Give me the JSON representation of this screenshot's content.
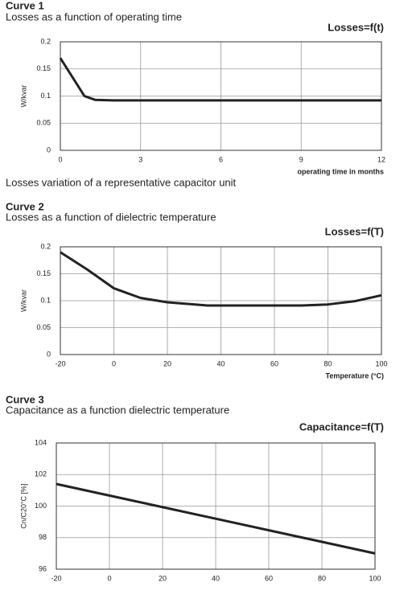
{
  "chart_data": [
    {
      "type": "line",
      "heading": "Curve 1",
      "subtitle": "Losses as a function of operating time",
      "title": "Losses=f(t)",
      "y_label": "W/kvar",
      "x_label": "operating time in months",
      "caption": "Losses variation of a representative capacitor unit",
      "x": [
        0,
        0.9,
        1.3,
        2,
        12
      ],
      "values": [
        0.17,
        0.1,
        0.093,
        0.092,
        0.092
      ],
      "color": "#222222",
      "xlim": [
        0,
        12
      ],
      "xticks": [
        0,
        3,
        6,
        9,
        12
      ],
      "ylim": [
        0,
        0.2
      ],
      "yticks": [
        0,
        0.05,
        0.1,
        0.15,
        0.2
      ],
      "grid": true
    },
    {
      "type": "line",
      "heading": "Curve 2",
      "subtitle": "Losses as a function of dielectric temperature",
      "title": "Losses=f(T)",
      "y_label": "W/kvar",
      "x_label": "Temperature (°C)",
      "x": [
        -20,
        -10,
        0,
        10,
        20,
        35,
        50,
        70,
        80,
        90,
        100
      ],
      "values": [
        0.19,
        0.158,
        0.123,
        0.105,
        0.097,
        0.091,
        0.091,
        0.091,
        0.093,
        0.099,
        0.11
      ],
      "color": "#222222",
      "xlim": [
        -20,
        100
      ],
      "xticks": [
        -20,
        0,
        20,
        40,
        60,
        80,
        100
      ],
      "ylim": [
        0,
        0.2
      ],
      "yticks": [
        0,
        0.05,
        0.1,
        0.15,
        0.2
      ],
      "grid": true
    },
    {
      "type": "line",
      "heading": "Curve 3",
      "subtitle": "Capacitance as a function dielectric temperature",
      "title": "Capacitance=f(T)",
      "y_label": "Cn/C20°C [%]",
      "x": [
        -20,
        100
      ],
      "values": [
        101.4,
        97
      ],
      "color": "#222222",
      "xlim": [
        -20,
        100
      ],
      "xticks": [
        -20,
        0,
        20,
        40,
        60,
        80,
        100
      ],
      "ylim": [
        96,
        104
      ],
      "yticks": [
        96,
        98,
        100,
        102,
        104
      ],
      "grid": true
    }
  ]
}
